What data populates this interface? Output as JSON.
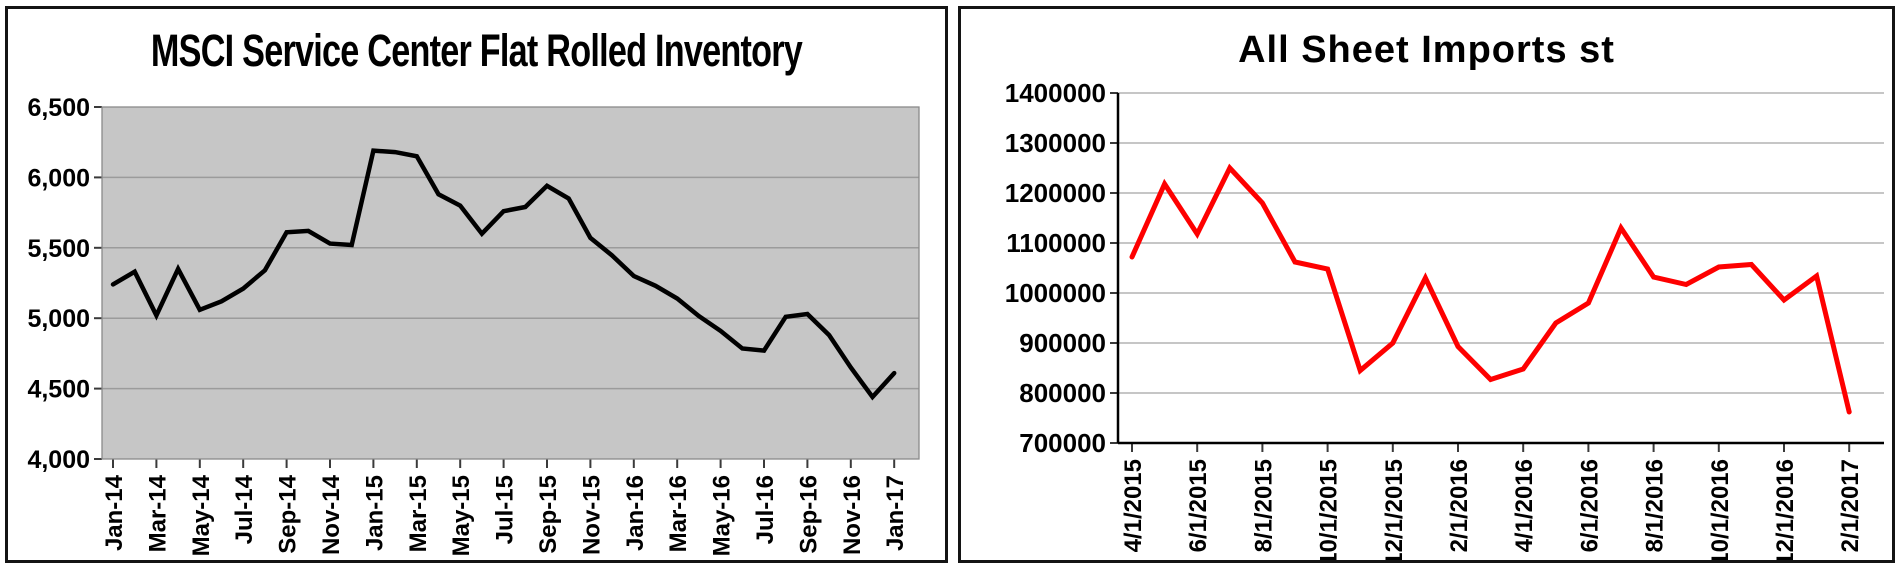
{
  "chart_data": [
    {
      "type": "line",
      "title": "MSCI Service Center Flat Rolled Inventory",
      "categories": [
        "Jan-14",
        "Feb-14",
        "Mar-14",
        "Apr-14",
        "May-14",
        "Jun-14",
        "Jul-14",
        "Aug-14",
        "Sep-14",
        "Oct-14",
        "Nov-14",
        "Dec-14",
        "Jan-15",
        "Feb-15",
        "Mar-15",
        "Apr-15",
        "May-15",
        "Jun-15",
        "Jul-15",
        "Aug-15",
        "Sep-15",
        "Oct-15",
        "Nov-15",
        "Dec-15",
        "Jan-16",
        "Feb-16",
        "Mar-16",
        "Apr-16",
        "May-16",
        "Jun-16",
        "Jul-16",
        "Aug-16",
        "Sep-16",
        "Oct-16",
        "Nov-16",
        "Dec-16",
        "Jan-17"
      ],
      "values": [
        5240,
        5330,
        5020,
        5350,
        5060,
        5120,
        5210,
        5340,
        5610,
        5620,
        5530,
        5520,
        6190,
        6180,
        6150,
        5880,
        5800,
        5600,
        5760,
        5790,
        5940,
        5850,
        5570,
        5445,
        5300,
        5230,
        5140,
        5015,
        4910,
        4785,
        4770,
        5010,
        5030,
        4880,
        4650,
        4440,
        4610
      ],
      "ylim": [
        4000,
        6500
      ],
      "ytick_step": 500,
      "y_tick_labels": [
        "4,000",
        "4,500",
        "5,000",
        "5,500",
        "6,000",
        "6,500"
      ],
      "x_tick_labels": [
        "Jan-14",
        "Mar-14",
        "May-14",
        "Jul-14",
        "Sep-14",
        "Nov-14",
        "Jan-15",
        "Mar-15",
        "May-15",
        "Jul-15",
        "Sep-15",
        "Nov-15",
        "Jan-16",
        "Mar-16",
        "May-16",
        "Jul-16",
        "Sep-16",
        "Nov-16",
        "Jan-17"
      ],
      "x_label_every": 2,
      "y_format": "comma",
      "xlabel": "",
      "ylabel": "",
      "grid": "on",
      "legend": "none",
      "line_color": "#000000",
      "plot_bg": "#c6c6c6",
      "grid_color": "#9b9b9b",
      "plot_border_color": "#8a8a8a"
    },
    {
      "type": "line",
      "title": "All Sheet Imports st",
      "categories": [
        "4/1/2015",
        "5/1/2015",
        "6/1/2015",
        "7/1/2015",
        "8/1/2015",
        "9/1/2015",
        "10/1/2015",
        "11/1/2015",
        "12/1/2015",
        "1/1/2016",
        "2/1/2016",
        "3/1/2016",
        "4/1/2016",
        "5/1/2016",
        "6/1/2016",
        "7/1/2016",
        "8/1/2016",
        "9/1/2016",
        "10/1/2016",
        "11/1/2016",
        "12/1/2016",
        "1/1/2017",
        "2/1/2017"
      ],
      "values": [
        1072000,
        1218000,
        1118000,
        1250000,
        1180000,
        1062000,
        1048000,
        845000,
        900000,
        1030000,
        893000,
        827000,
        848000,
        940000,
        980000,
        1130000,
        1032000,
        1017000,
        1052000,
        1057000,
        986000,
        1034000,
        762000
      ],
      "ylim": [
        700000,
        1400000
      ],
      "ytick_step": 100000,
      "y_tick_labels": [
        "700000",
        "800000",
        "900000",
        "1000000",
        "1100000",
        "1200000",
        "1300000",
        "1400000"
      ],
      "x_tick_labels": [
        "4/1/2015",
        "6/1/2015",
        "8/1/2015",
        "10/1/2015",
        "12/1/2015",
        "2/1/2016",
        "4/1/2016",
        "6/1/2016",
        "8/1/2016",
        "10/1/2016",
        "12/1/2016",
        "2/1/2017"
      ],
      "x_label_every": 2,
      "y_format": "plain",
      "xlabel": "",
      "ylabel": "",
      "grid": "on",
      "legend": "none",
      "line_color": "#fe0000",
      "plot_bg": null,
      "grid_color": "#b3b3b3",
      "axis_color": "#000000"
    }
  ]
}
